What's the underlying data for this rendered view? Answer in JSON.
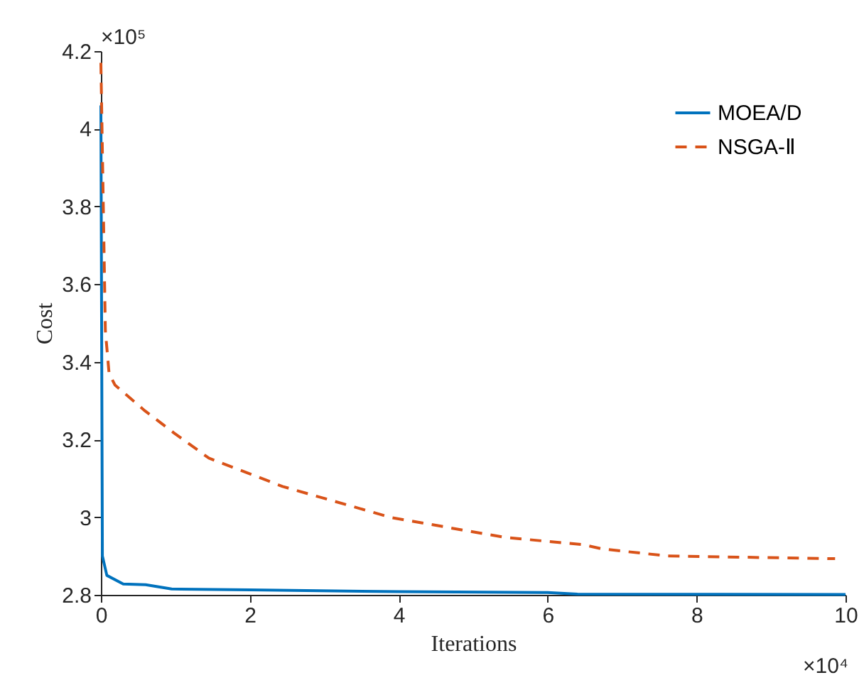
{
  "chart_data": {
    "type": "line",
    "xlabel": "Iterations",
    "ylabel": "Cost",
    "annotations": [
      "×10⁵",
      "×10⁴"
    ],
    "xlim": [
      0,
      10
    ],
    "xticks": [
      0,
      2,
      4,
      6,
      8,
      10
    ],
    "ylim": [
      2.8,
      4.2
    ],
    "yticks": [
      2.8,
      3,
      3.2,
      3.4,
      3.6,
      3.8,
      4,
      4.2
    ],
    "grid": false,
    "legend": "top right",
    "series": [
      {
        "name": "MOEA/D",
        "color": "#0072bd",
        "line_style": "solid",
        "x": [
          0,
          0.02,
          0.08,
          0.3,
          0.6,
          0.95,
          2,
          4,
          6,
          6.4,
          10
        ],
        "values": [
          4.06,
          2.9,
          2.85,
          2.828,
          2.826,
          2.815,
          2.813,
          2.808,
          2.806,
          2.802,
          2.801
        ]
      },
      {
        "name": "NSGA-Ⅱ",
        "color": "#d95319",
        "line_style": "dashed",
        "x": [
          0,
          0.06,
          0.11,
          0.19,
          0.59,
          0.98,
          1.45,
          2.44,
          3.9,
          5.42,
          6.48,
          6.74,
          7.61,
          9.86
        ],
        "values": [
          4.17,
          3.48,
          3.37,
          3.34,
          3.274,
          3.217,
          3.152,
          3.079,
          2.999,
          2.948,
          2.929,
          2.918,
          2.9,
          2.893
        ]
      }
    ]
  }
}
